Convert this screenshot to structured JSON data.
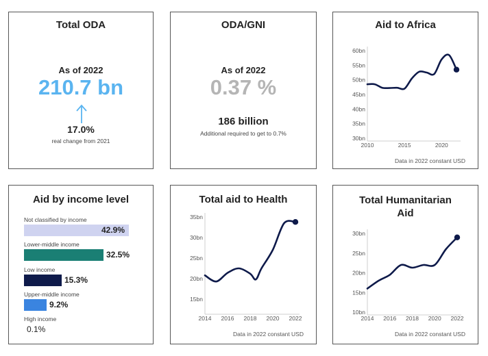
{
  "colors": {
    "accent_blue": "#5ab4f0",
    "grey_value": "#b5b5b5",
    "navy": "#0e1a4a"
  },
  "total_oda": {
    "title": "Total ODA",
    "as_of": "As of 2022",
    "value": "210.7 bn",
    "arrow_icon": "up-arrow-icon",
    "change": "17.0%",
    "change_note": "real change from 2021"
  },
  "oda_gni": {
    "title": "ODA/GNI",
    "as_of": "As of 2022",
    "value": "0.37 %",
    "amount": "186 billion",
    "amount_note": "Additional required to get to 0.7%"
  },
  "income": {
    "title": "Aid by income level",
    "items": [
      {
        "label": "Not classified by income",
        "value": "42.9%",
        "pct": 42.9,
        "color": "#cfd3f0"
      },
      {
        "label": "Lower-middle income",
        "value": "32.5%",
        "pct": 32.5,
        "color": "#1a7f74"
      },
      {
        "label": "Low income",
        "value": "15.3%",
        "pct": 15.3,
        "color": "#0e1a4a"
      },
      {
        "label": "Upper-middle income",
        "value": "9.2%",
        "pct": 9.2,
        "color": "#3a84e0"
      },
      {
        "label": "High income",
        "value": "0.1%",
        "pct": 0.1,
        "color": "#3a84e0"
      }
    ]
  },
  "chart_data": [
    {
      "id": "africa",
      "type": "line",
      "title": "Aid to Africa",
      "footnote": "Data in 2022 constant USD",
      "ylim": [
        30,
        60
      ],
      "yticks": [
        30,
        35,
        40,
        45,
        50,
        55,
        60
      ],
      "ytick_labels": [
        "30bn",
        "35bn",
        "40bn",
        "45bn",
        "50bn",
        "55bn",
        "60bn"
      ],
      "xlim": [
        2010,
        2022
      ],
      "xticks": [
        2010,
        2015,
        2020
      ],
      "xtick_labels": [
        "2010",
        "2015",
        "2020"
      ],
      "x": [
        2010,
        2011,
        2012,
        2013,
        2014,
        2015,
        2016,
        2017,
        2018,
        2019,
        2020,
        2021,
        2022
      ],
      "y": [
        48.5,
        48.5,
        47.3,
        47.2,
        47.3,
        47.0,
        50.5,
        52.8,
        52.5,
        52.0,
        57.0,
        58.5,
        53.5
      ]
    },
    {
      "id": "health",
      "type": "line",
      "title": "Total aid to Health",
      "footnote": "Data in 2022 constant USD",
      "ylim": [
        12,
        35
      ],
      "yticks": [
        15,
        20,
        25,
        30,
        35
      ],
      "ytick_labels": [
        "15bn",
        "20bn",
        "25bn",
        "30bn",
        "35bn"
      ],
      "xlim": [
        2014,
        2022
      ],
      "xticks": [
        2014,
        2016,
        2018,
        2020,
        2022
      ],
      "xtick_labels": [
        "2014",
        "2016",
        "2018",
        "2020",
        "2022"
      ],
      "x": [
        2014,
        2015,
        2016,
        2017,
        2018,
        2018.5,
        2019,
        2020,
        2021,
        2022
      ],
      "y": [
        20.8,
        19.3,
        21.4,
        22.5,
        21.2,
        19.8,
        22.5,
        27.0,
        33.5,
        33.8
      ]
    },
    {
      "id": "humanitarian",
      "type": "line",
      "title": "Total Humanitarian Aid",
      "footnote": "Data in 2022 constant USD",
      "ylim": [
        10,
        30
      ],
      "yticks": [
        10,
        15,
        20,
        25,
        30
      ],
      "ytick_labels": [
        "10bn",
        "15bn",
        "20bn",
        "25bn",
        "30bn"
      ],
      "xlim": [
        2014,
        2022
      ],
      "xticks": [
        2014,
        2016,
        2018,
        2020,
        2022
      ],
      "xtick_labels": [
        "2014",
        "2016",
        "2018",
        "2020",
        "2022"
      ],
      "x": [
        2014,
        2015,
        2016,
        2017,
        2018,
        2019,
        2020,
        2021,
        2022
      ],
      "y": [
        16.0,
        18.0,
        19.5,
        22.0,
        21.3,
        22.0,
        22.0,
        26.0,
        29.0
      ]
    }
  ]
}
